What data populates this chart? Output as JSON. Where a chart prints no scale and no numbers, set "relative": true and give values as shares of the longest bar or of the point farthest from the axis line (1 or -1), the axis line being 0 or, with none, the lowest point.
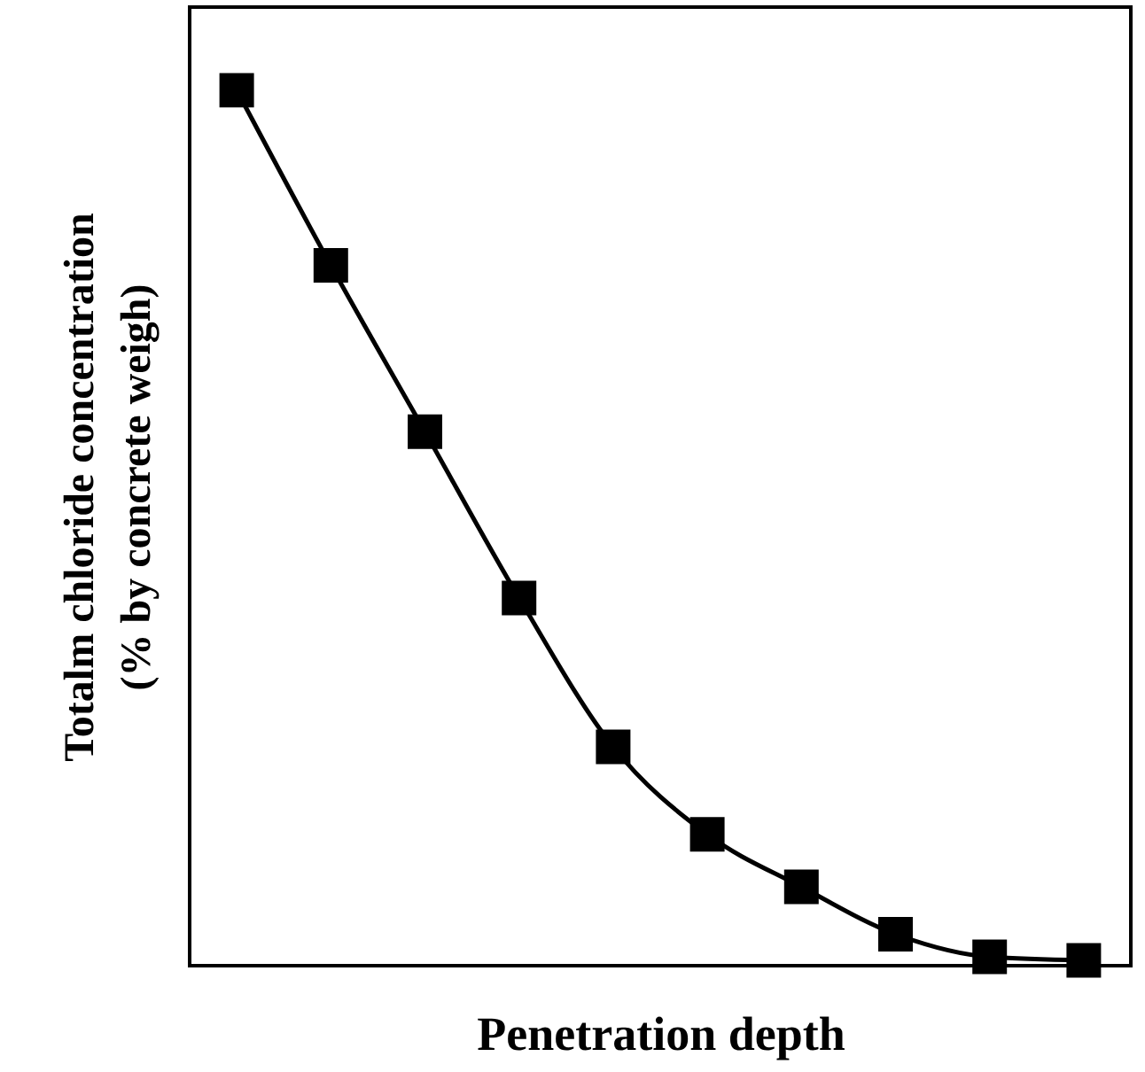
{
  "chart_data": {
    "type": "line",
    "relative": true,
    "xlabel": "Penetration depth",
    "ylabel": "Totalm chloride concentration\n(% by concrete weigh)",
    "categories": [
      null,
      null,
      null,
      null,
      null,
      null,
      null,
      null,
      null,
      null
    ],
    "series": [
      {
        "color": "#000000",
        "values": [
          1,
          0.8,
          0.61,
          0.42,
          0.25,
          0.15,
          0.09,
          0.036,
          0.01,
          0.006
        ]
      }
    ],
    "marker": "square",
    "line_style": "solid",
    "grid": false
  }
}
